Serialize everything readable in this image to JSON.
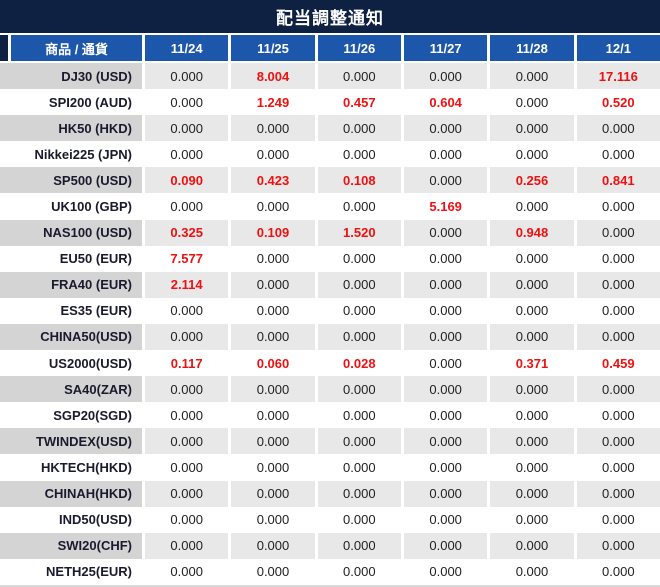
{
  "title": "配当調整通知",
  "colors": {
    "title_bar": "#0e2142",
    "header_blue": "#1d57ab",
    "stripe_label_gray": "#d4d4d4",
    "stripe_value_gray": "#e8e8e8",
    "value_zero_text": "#212124",
    "value_nonzero_text": "#ed1111",
    "label_text": "#1a1a2e"
  },
  "table": {
    "label_header": "商品 / 通貨",
    "date_headers": [
      "11/24",
      "11/25",
      "11/26",
      "11/27",
      "11/28",
      "12/1"
    ],
    "rows": [
      {
        "label": "DJ30 (USD)",
        "values": [
          "0.000",
          "8.004",
          "0.000",
          "0.000",
          "0.000",
          "17.116"
        ]
      },
      {
        "label": "SPI200 (AUD)",
        "values": [
          "0.000",
          "1.249",
          "0.457",
          "0.604",
          "0.000",
          "0.520"
        ]
      },
      {
        "label": "HK50 (HKD)",
        "values": [
          "0.000",
          "0.000",
          "0.000",
          "0.000",
          "0.000",
          "0.000"
        ]
      },
      {
        "label": "Nikkei225 (JPN)",
        "values": [
          "0.000",
          "0.000",
          "0.000",
          "0.000",
          "0.000",
          "0.000"
        ]
      },
      {
        "label": "SP500 (USD)",
        "values": [
          "0.090",
          "0.423",
          "0.108",
          "0.000",
          "0.256",
          "0.841"
        ]
      },
      {
        "label": "UK100 (GBP)",
        "values": [
          "0.000",
          "0.000",
          "0.000",
          "5.169",
          "0.000",
          "0.000"
        ]
      },
      {
        "label": "NAS100 (USD)",
        "values": [
          "0.325",
          "0.109",
          "1.520",
          "0.000",
          "0.948",
          "0.000"
        ]
      },
      {
        "label": "EU50 (EUR)",
        "values": [
          "7.577",
          "0.000",
          "0.000",
          "0.000",
          "0.000",
          "0.000"
        ]
      },
      {
        "label": "FRA40 (EUR)",
        "values": [
          "2.114",
          "0.000",
          "0.000",
          "0.000",
          "0.000",
          "0.000"
        ]
      },
      {
        "label": "ES35 (EUR)",
        "values": [
          "0.000",
          "0.000",
          "0.000",
          "0.000",
          "0.000",
          "0.000"
        ]
      },
      {
        "label": "CHINA50(USD)",
        "values": [
          "0.000",
          "0.000",
          "0.000",
          "0.000",
          "0.000",
          "0.000"
        ]
      },
      {
        "label": "US2000(USD)",
        "values": [
          "0.117",
          "0.060",
          "0.028",
          "0.000",
          "0.371",
          "0.459"
        ]
      },
      {
        "label": "SA40(ZAR)",
        "values": [
          "0.000",
          "0.000",
          "0.000",
          "0.000",
          "0.000",
          "0.000"
        ]
      },
      {
        "label": "SGP20(SGD)",
        "values": [
          "0.000",
          "0.000",
          "0.000",
          "0.000",
          "0.000",
          "0.000"
        ]
      },
      {
        "label": "TWINDEX(USD)",
        "values": [
          "0.000",
          "0.000",
          "0.000",
          "0.000",
          "0.000",
          "0.000"
        ]
      },
      {
        "label": "HKTECH(HKD)",
        "values": [
          "0.000",
          "0.000",
          "0.000",
          "0.000",
          "0.000",
          "0.000"
        ]
      },
      {
        "label": "CHINAH(HKD)",
        "values": [
          "0.000",
          "0.000",
          "0.000",
          "0.000",
          "0.000",
          "0.000"
        ]
      },
      {
        "label": "IND50(USD)",
        "values": [
          "0.000",
          "0.000",
          "0.000",
          "0.000",
          "0.000",
          "0.000"
        ]
      },
      {
        "label": "SWI20(CHF)",
        "values": [
          "0.000",
          "0.000",
          "0.000",
          "0.000",
          "0.000",
          "0.000"
        ]
      },
      {
        "label": "NETH25(EUR)",
        "values": [
          "0.000",
          "0.000",
          "0.000",
          "0.000",
          "0.000",
          "0.000"
        ]
      }
    ]
  }
}
